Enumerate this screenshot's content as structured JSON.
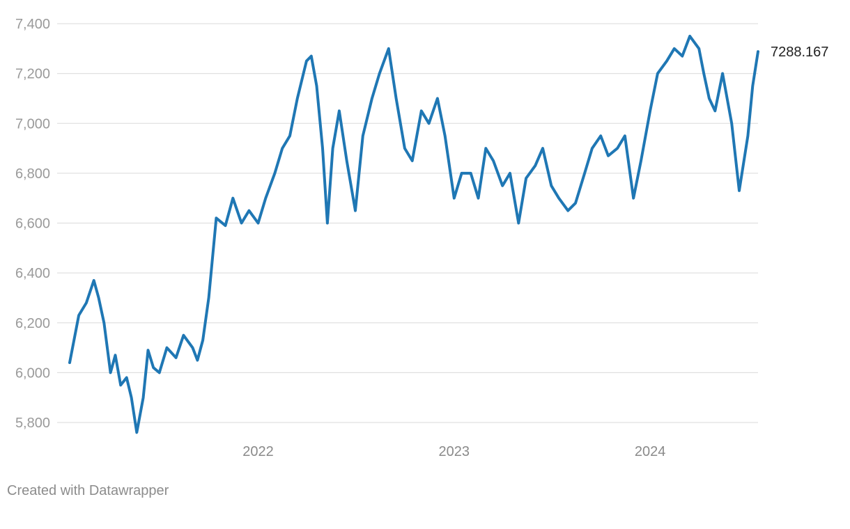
{
  "chart_data": {
    "type": "line",
    "title": "",
    "xlabel": "",
    "ylabel": "",
    "ylim": [
      5800,
      7400
    ],
    "y_ticks": [
      5800,
      6000,
      6200,
      6400,
      6600,
      6800,
      7000,
      7200,
      7400
    ],
    "y_tick_labels": [
      "5,800",
      "6,000",
      "6,200",
      "6,400",
      "6,600",
      "6,800",
      "7,000",
      "7,200",
      "7,400"
    ],
    "x_ticks": [
      "2022-01-01",
      "2023-01-01",
      "2024-01-01"
    ],
    "x_tick_labels": [
      "2022",
      "2023",
      "2024"
    ],
    "x_range": [
      "2021-01-15",
      "2024-07-20"
    ],
    "grid": "horizontal",
    "line_color": "#1f77b4",
    "end_label": "7288.167",
    "series": [
      {
        "x": [
          "2021-01-15",
          "2021-02-01",
          "2021-02-15",
          "2021-03-01",
          "2021-03-10",
          "2021-03-20",
          "2021-04-01",
          "2021-04-10",
          "2021-04-20",
          "2021-05-01",
          "2021-05-10",
          "2021-05-20",
          "2021-06-01",
          "2021-06-10",
          "2021-06-20",
          "2021-07-01",
          "2021-07-15",
          "2021-08-01",
          "2021-08-15",
          "2021-09-01",
          "2021-09-10",
          "2021-09-20",
          "2021-10-01",
          "2021-10-15",
          "2021-11-01",
          "2021-11-15",
          "2021-12-01",
          "2021-12-15",
          "2022-01-01",
          "2022-01-15",
          "2022-02-01",
          "2022-02-15",
          "2022-03-01",
          "2022-03-15",
          "2022-04-01",
          "2022-04-10",
          "2022-04-20",
          "2022-05-01",
          "2022-05-10",
          "2022-05-20",
          "2022-06-01",
          "2022-06-15",
          "2022-07-01",
          "2022-07-15",
          "2022-08-01",
          "2022-08-15",
          "2022-09-01",
          "2022-09-15",
          "2022-10-01",
          "2022-10-15",
          "2022-11-01",
          "2022-11-15",
          "2022-12-01",
          "2022-12-15",
          "2023-01-01",
          "2023-01-15",
          "2023-02-01",
          "2023-02-15",
          "2023-03-01",
          "2023-03-15",
          "2023-04-01",
          "2023-04-15",
          "2023-05-01",
          "2023-05-15",
          "2023-06-01",
          "2023-06-15",
          "2023-07-01",
          "2023-07-15",
          "2023-08-01",
          "2023-08-15",
          "2023-09-01",
          "2023-09-15",
          "2023-10-01",
          "2023-10-15",
          "2023-11-01",
          "2023-11-15",
          "2023-12-01",
          "2023-12-15",
          "2024-01-01",
          "2024-01-15",
          "2024-02-01",
          "2024-02-15",
          "2024-03-01",
          "2024-03-15",
          "2024-04-01",
          "2024-04-10",
          "2024-04-20",
          "2024-05-01",
          "2024-05-15",
          "2024-06-01",
          "2024-06-15",
          "2024-07-01",
          "2024-07-10",
          "2024-07-20"
        ],
        "values": [
          6040,
          6230,
          6280,
          6370,
          6300,
          6200,
          6000,
          6070,
          5950,
          5980,
          5900,
          5760,
          5900,
          6090,
          6020,
          6000,
          6100,
          6060,
          6150,
          6100,
          6050,
          6130,
          6300,
          6620,
          6590,
          6700,
          6600,
          6650,
          6600,
          6700,
          6800,
          6900,
          6950,
          7100,
          7250,
          7270,
          7150,
          6900,
          6600,
          6900,
          7050,
          6850,
          6650,
          6950,
          7100,
          7200,
          7300,
          7100,
          6900,
          6850,
          7050,
          7000,
          7100,
          6950,
          6700,
          6800,
          6800,
          6700,
          6900,
          6850,
          6750,
          6800,
          6600,
          6780,
          6830,
          6900,
          6750,
          6700,
          6650,
          6680,
          6800,
          6900,
          6950,
          6870,
          6900,
          6950,
          6700,
          6850,
          7050,
          7200,
          7250,
          7300,
          7270,
          7350,
          7300,
          7200,
          7100,
          7050,
          7200,
          7000,
          6730,
          6950,
          7150,
          7288.167
        ]
      }
    ]
  },
  "footer": {
    "credit": "Created with Datawrapper"
  }
}
